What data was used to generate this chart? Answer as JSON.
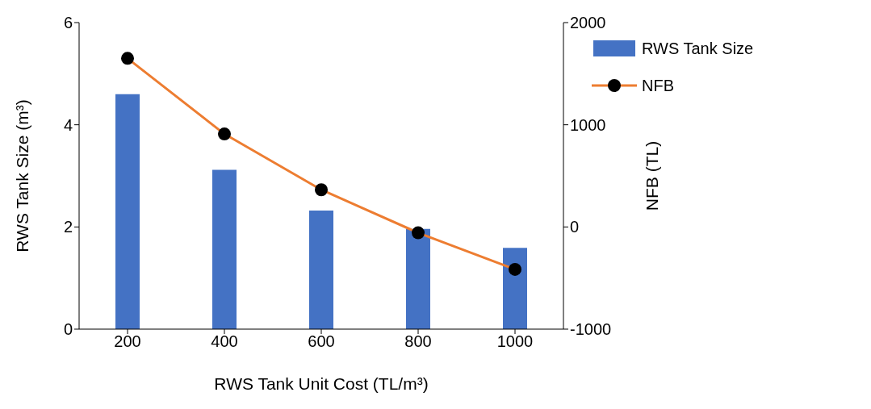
{
  "chart_data": {
    "type": "bar",
    "xlabel": "RWS Tank Unit Cost (TL/m³)",
    "ylabel": "RWS Tank Size (m³)",
    "y2label": "NFB (TL)",
    "categories": [
      "200",
      "400",
      "600",
      "800",
      "1000"
    ],
    "series": [
      {
        "name": "RWS Tank Size",
        "color": "#4472c4",
        "values": [
          4.6,
          3.12,
          2.32,
          1.96,
          1.59
        ]
      },
      {
        "name": "NFB",
        "type": "line",
        "axis": "y2",
        "color": "#ed7d31",
        "marker": "circle",
        "values": [
          1650,
          910,
          364,
          -57,
          -415
        ]
      }
    ],
    "ylim": [
      0,
      6
    ],
    "yticks": [
      0,
      2,
      4,
      6
    ],
    "y2lim": [
      -1000,
      2000
    ],
    "y2ticks": [
      -1000,
      0,
      1000,
      2000
    ],
    "legend": "top right"
  }
}
